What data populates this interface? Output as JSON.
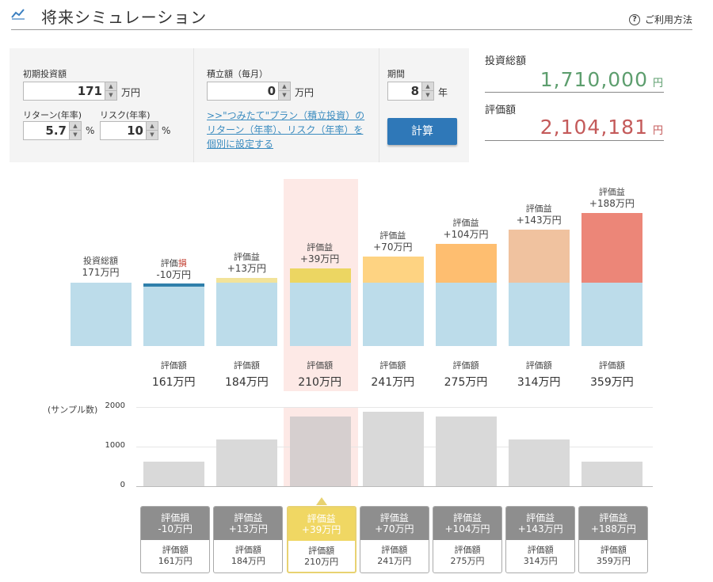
{
  "header": {
    "title": "将来シミュレーション",
    "help_label": "ご利用方法",
    "help_icon": "?"
  },
  "inputs": {
    "initial": {
      "label": "初期投資額",
      "value": "171",
      "unit": "万円"
    },
    "return": {
      "label": "リターン(年率)",
      "value": "5.7",
      "unit": "%"
    },
    "risk": {
      "label": "リスク(年率)",
      "value": "10",
      "unit": "%"
    },
    "monthly": {
      "label": "積立額（毎月）",
      "value": "0",
      "unit": "万円"
    },
    "link_text": ">>\"つみたて\"プラン（積立投資）のリターン（年率）、リスク（年率）を個別に設定する",
    "period": {
      "label": "期間",
      "value": "8",
      "unit": "年"
    },
    "calc_label": "計算"
  },
  "summary": {
    "invest_label": "投資総額",
    "invest_value": "1,710,000",
    "invest_unit": "円",
    "invest_color": "#5d9e6e",
    "eval_label": "評価額",
    "eval_value": "2,104,181",
    "eval_unit": "円",
    "eval_color": "#c45a5a"
  },
  "chart_data": {
    "type": "bar",
    "base": {
      "label": "投資総額",
      "value": "171万円",
      "amount": 171
    },
    "scenarios": [
      {
        "kind_label": "評価損",
        "gain_label": "-10万円",
        "gain": -10,
        "eval_label": "評価額",
        "eval_value": "161万円",
        "color": "#2f7fab",
        "samples": 620
      },
      {
        "kind_label": "評価益",
        "gain_label": "+13万円",
        "gain": 13,
        "eval_label": "評価額",
        "eval_value": "184万円",
        "color": "#f2e39a",
        "samples": 1180
      },
      {
        "kind_label": "評価益",
        "gain_label": "+39万円",
        "gain": 39,
        "eval_label": "評価額",
        "eval_value": "210万円",
        "color": "#ecd662",
        "samples": 1760,
        "selected": true
      },
      {
        "kind_label": "評価益",
        "gain_label": "+70万円",
        "gain": 70,
        "eval_label": "評価額",
        "eval_value": "241万円",
        "color": "#fed382",
        "samples": 1880
      },
      {
        "kind_label": "評価益",
        "gain_label": "+104万円",
        "gain": 104,
        "eval_label": "評価額",
        "eval_value": "275万円",
        "color": "#febe70",
        "samples": 1760
      },
      {
        "kind_label": "評価益",
        "gain_label": "+143万円",
        "gain": 143,
        "eval_label": "評価額",
        "eval_value": "314万円",
        "color": "#f0c29f",
        "samples": 1180
      },
      {
        "kind_label": "評価益",
        "gain_label": "+188万円",
        "gain": 188,
        "eval_label": "評価額",
        "eval_value": "359万円",
        "color": "#ec8678",
        "samples": 620
      }
    ],
    "histogram": {
      "axis_title": "(サンプル数)",
      "ticks": [
        "2000",
        "1000",
        "0"
      ],
      "ylim": [
        0,
        2000
      ]
    }
  }
}
